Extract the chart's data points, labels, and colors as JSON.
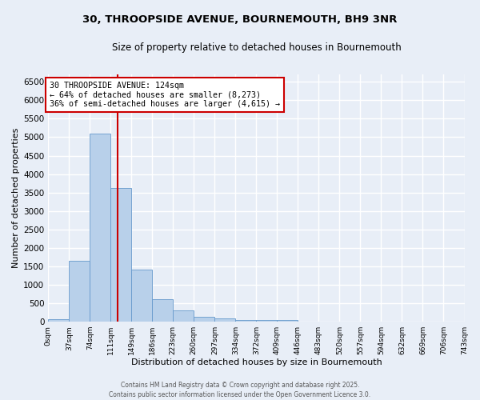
{
  "title_line1": "30, THROOPSIDE AVENUE, BOURNEMOUTH, BH9 3NR",
  "title_line2": "Size of property relative to detached houses in Bournemouth",
  "xlabel": "Distribution of detached houses by size in Bournemouth",
  "ylabel": "Number of detached properties",
  "bar_color": "#b8d0ea",
  "bar_edge_color": "#6699cc",
  "background_color": "#e8eef7",
  "grid_color": "#ffffff",
  "bin_edges": [
    0,
    37,
    74,
    111,
    148,
    185,
    222,
    259,
    296,
    333,
    370,
    407,
    444,
    481,
    518,
    555,
    592,
    629,
    666,
    703,
    740
  ],
  "bin_labels": [
    "0sqm",
    "37sqm",
    "74sqm",
    "111sqm",
    "149sqm",
    "186sqm",
    "223sqm",
    "260sqm",
    "297sqm",
    "334sqm",
    "372sqm",
    "409sqm",
    "446sqm",
    "483sqm",
    "520sqm",
    "557sqm",
    "594sqm",
    "632sqm",
    "669sqm",
    "706sqm",
    "743sqm"
  ],
  "bar_heights": [
    60,
    1650,
    5100,
    3620,
    1420,
    600,
    300,
    130,
    80,
    55,
    40,
    55,
    0,
    0,
    0,
    0,
    0,
    0,
    0,
    0
  ],
  "ylim": [
    0,
    6700
  ],
  "yticks": [
    0,
    500,
    1000,
    1500,
    2000,
    2500,
    3000,
    3500,
    4000,
    4500,
    5000,
    5500,
    6000,
    6500
  ],
  "property_size": 124,
  "vline_color": "#cc0000",
  "annotation_text": "30 THROOPSIDE AVENUE: 124sqm\n← 64% of detached houses are smaller (8,273)\n36% of semi-detached houses are larger (4,615) →",
  "annotation_box_color": "#ffffff",
  "annotation_box_edge_color": "#cc0000",
  "footer_line1": "Contains HM Land Registry data © Crown copyright and database right 2025.",
  "footer_line2": "Contains public sector information licensed under the Open Government Licence 3.0."
}
